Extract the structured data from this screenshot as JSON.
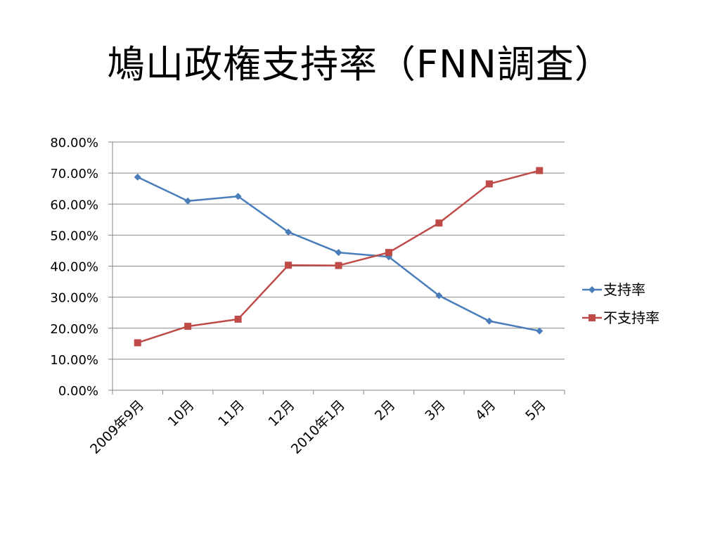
{
  "slide": {
    "title": "鳩山政権支持率（FNN調査）"
  },
  "chart_data": {
    "type": "line",
    "title": "鳩山政権支持率（FNN調査）",
    "xlabel": "",
    "ylabel": "",
    "categories": [
      "2009年9月",
      "10月",
      "11月",
      "12月",
      "2010年1月",
      "2月",
      "3月",
      "4月",
      "5月"
    ],
    "ylim": [
      0,
      80
    ],
    "yticks": [
      0,
      10,
      20,
      30,
      40,
      50,
      60,
      70,
      80
    ],
    "ytick_labels": [
      "0.00%",
      "10.00%",
      "20.00%",
      "30.00%",
      "40.00%",
      "50.00%",
      "60.00%",
      "70.00%",
      "80.00%"
    ],
    "y_unit": "%",
    "grid": "horizontal",
    "legend_position": "right",
    "series": [
      {
        "name": "支持率",
        "color": "#4a7ebb",
        "marker": "diamond",
        "values": [
          68.7,
          61.0,
          62.5,
          51.0,
          44.4,
          43.0,
          30.5,
          22.3,
          19.1
        ]
      },
      {
        "name": "不支持率",
        "color": "#be4b48",
        "marker": "square",
        "values": [
          15.3,
          20.6,
          22.9,
          40.3,
          40.2,
          44.4,
          53.9,
          66.5,
          70.8
        ]
      }
    ]
  }
}
